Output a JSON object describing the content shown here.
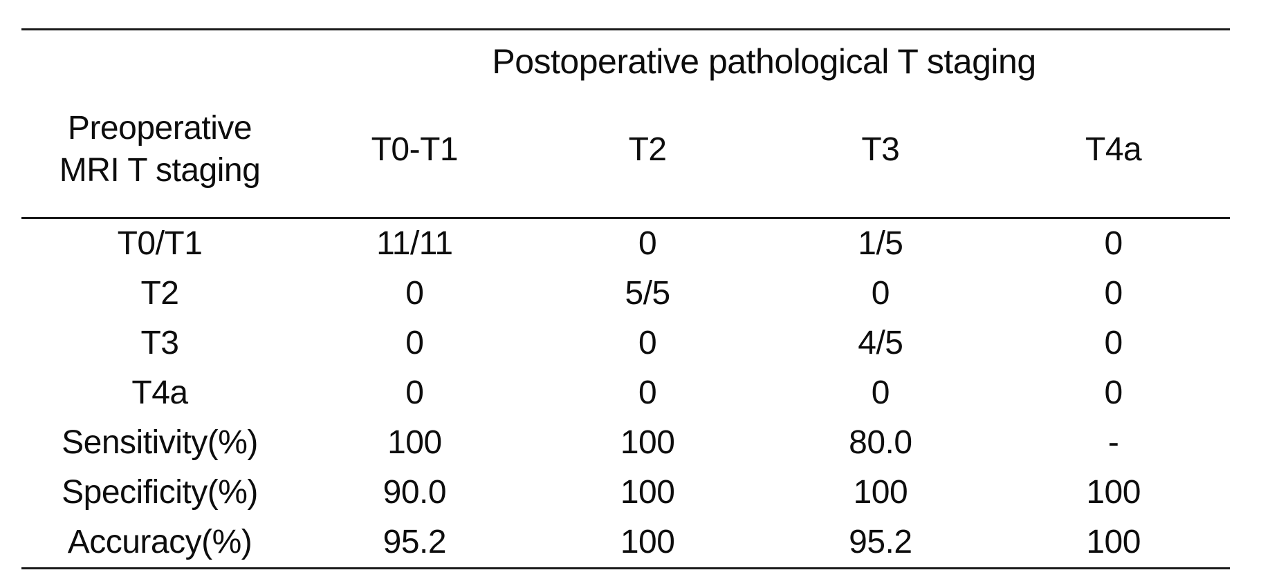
{
  "colors": {
    "background": "#ffffff",
    "text": "#0d0d0d",
    "rule": "#1a1a1a"
  },
  "table": {
    "spanning_header": "Postoperative pathological T staging",
    "corner_header": {
      "line1": "Preoperative",
      "line2": "MRI T staging"
    },
    "columns": [
      "T0-T1",
      "T2",
      "T3",
      "T4a"
    ],
    "rows": [
      {
        "label": "T0/T1",
        "values": [
          "11/11",
          "0",
          "1/5",
          "0"
        ]
      },
      {
        "label": "T2",
        "values": [
          "0",
          "5/5",
          "0",
          "0"
        ]
      },
      {
        "label": "T3",
        "values": [
          "0",
          "0",
          "4/5",
          "0"
        ]
      },
      {
        "label": "T4a",
        "values": [
          "0",
          "0",
          "0",
          "0"
        ]
      },
      {
        "label": "Sensitivity(%)",
        "values": [
          "100",
          "100",
          "80.0",
          "-"
        ]
      },
      {
        "label": "Specificity(%)",
        "values": [
          "90.0",
          "100",
          "100",
          "100"
        ]
      },
      {
        "label": "Accuracy(%)",
        "values": [
          "95.2",
          "100",
          "95.2",
          "100"
        ]
      }
    ]
  }
}
